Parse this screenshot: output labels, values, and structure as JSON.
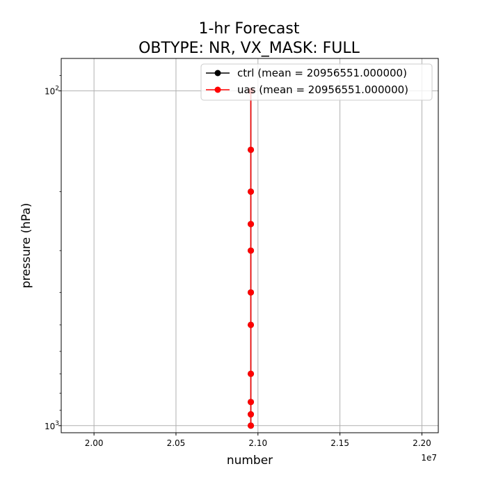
{
  "chart_data": {
    "type": "line",
    "title_line1": "1-hr Forecast",
    "title_line2": "OBTYPE: NR,  VX_MASK: FULL",
    "xlabel": "number",
    "ylabel": "pressure (hPa)",
    "x_offset_label": "1e7",
    "xlim": [
      19800000,
      22100000
    ],
    "ylim": [
      1050,
      80
    ],
    "y_scale": "log",
    "y_inverted": true,
    "grid": true,
    "legend_position": "top-right",
    "x_ticks": [
      {
        "value": 20000000,
        "label": "2.00"
      },
      {
        "value": 20500000,
        "label": "2.05"
      },
      {
        "value": 21000000,
        "label": "2.10"
      },
      {
        "value": 21500000,
        "label": "2.15"
      },
      {
        "value": 22000000,
        "label": "2.20"
      }
    ],
    "y_major_ticks": [
      {
        "value": 100,
        "label_base": "10",
        "label_exp": "2"
      },
      {
        "value": 1000,
        "label_base": "10",
        "label_exp": "3"
      }
    ],
    "y_minor_ticks": [
      90,
      200,
      300,
      400,
      500,
      600,
      700,
      800,
      900
    ],
    "series": [
      {
        "name": "ctrl (mean = 20956551.000000)",
        "color": "#000000",
        "x": [
          20956551,
          20956551,
          20956551,
          20956551,
          20956551,
          20956551,
          20956551,
          20956551,
          20956551,
          20956551,
          20956551
        ],
        "y": [
          100,
          150,
          200,
          250,
          300,
          400,
          500,
          700,
          850,
          925,
          1000
        ]
      },
      {
        "name": "uas (mean = 20956551.000000)",
        "color": "#ff0000",
        "x": [
          20956551,
          20956551,
          20956551,
          20956551,
          20956551,
          20956551,
          20956551,
          20956551,
          20956551,
          20956551,
          20956551
        ],
        "y": [
          100,
          150,
          200,
          250,
          300,
          400,
          500,
          700,
          850,
          925,
          1000
        ]
      }
    ]
  }
}
